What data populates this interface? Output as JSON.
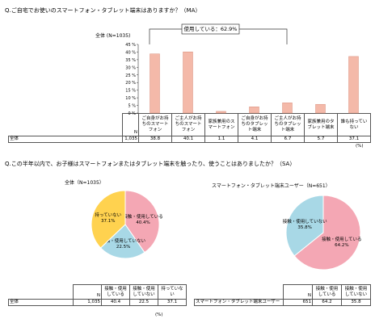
{
  "q1": "Q.ご自宅でお使いのスマートフォン・タブレット端末はありますか？（MA）",
  "q2": "Q.この半年以内で、お子様はスマートフォンまたはタブレット端末を触ったり、使うことはありましたか？（SA）",
  "chart_data": [
    {
      "type": "bar",
      "subtitle": "全体 (N=1035)",
      "annotation": "使用している：62.9%",
      "categories": [
        "ご自身がお持ちのスマートフォン",
        "ご主人がお持ちのスマートフォン",
        "家族兼用のスマートフォン",
        "ご自身がお持ちのタブレット端末",
        "ご主人がお持ちのタブレット端末",
        "家族兼用のタブレット端末",
        "誰も持っていない"
      ],
      "values": [
        38.8,
        40.1,
        1.1,
        4.1,
        6.7,
        5.7,
        37.1
      ],
      "color": "#f4b9a9",
      "ylim": [
        0,
        45
      ],
      "yticks": [
        {
          "value": 0,
          "label": "0 %"
        },
        {
          "value": 5,
          "label": "5 %"
        },
        {
          "value": 10,
          "label": "10 %"
        },
        {
          "value": 15,
          "label": "15 %"
        },
        {
          "value": 20,
          "label": "20 %"
        },
        {
          "value": 25,
          "label": "25 %"
        },
        {
          "value": 30,
          "label": "30 %"
        },
        {
          "value": 35,
          "label": "35 %"
        },
        {
          "value": 40,
          "label": "40 %"
        },
        {
          "value": 45,
          "label": "45 %"
        }
      ]
    },
    {
      "type": "pie",
      "title": "全体（N=1035）",
      "categories": [
        "接触・使用している",
        "接触・使用していない",
        "持っていない"
      ],
      "values": [
        40.4,
        22.5,
        37.1
      ],
      "value_labels": [
        "40.4%",
        "22.5%",
        "37.1%"
      ],
      "colors": [
        "#f4a7b4",
        "#a8d8e6",
        "#ffd24f"
      ]
    },
    {
      "type": "pie",
      "title": "スマートフォン・タブレット端末ユーザー（N=651）",
      "categories": [
        "接触・使用している",
        "接触・使用していない"
      ],
      "values": [
        64.2,
        35.8
      ],
      "value_labels": [
        "64.2%",
        "35.8%"
      ],
      "colors": [
        "#f4a7b4",
        "#a8d8e6"
      ]
    }
  ],
  "table1": {
    "n_header": "N",
    "row_label": "全体",
    "n": "1,035",
    "unit": "(%)"
  },
  "table2": {
    "n_header": "N",
    "row_label": "全体",
    "n": "1,035",
    "unit": "(%)"
  },
  "table3": {
    "n_header": "N",
    "row_label": "スマートフォン・タブレット端末ユーザー",
    "n": "651"
  }
}
